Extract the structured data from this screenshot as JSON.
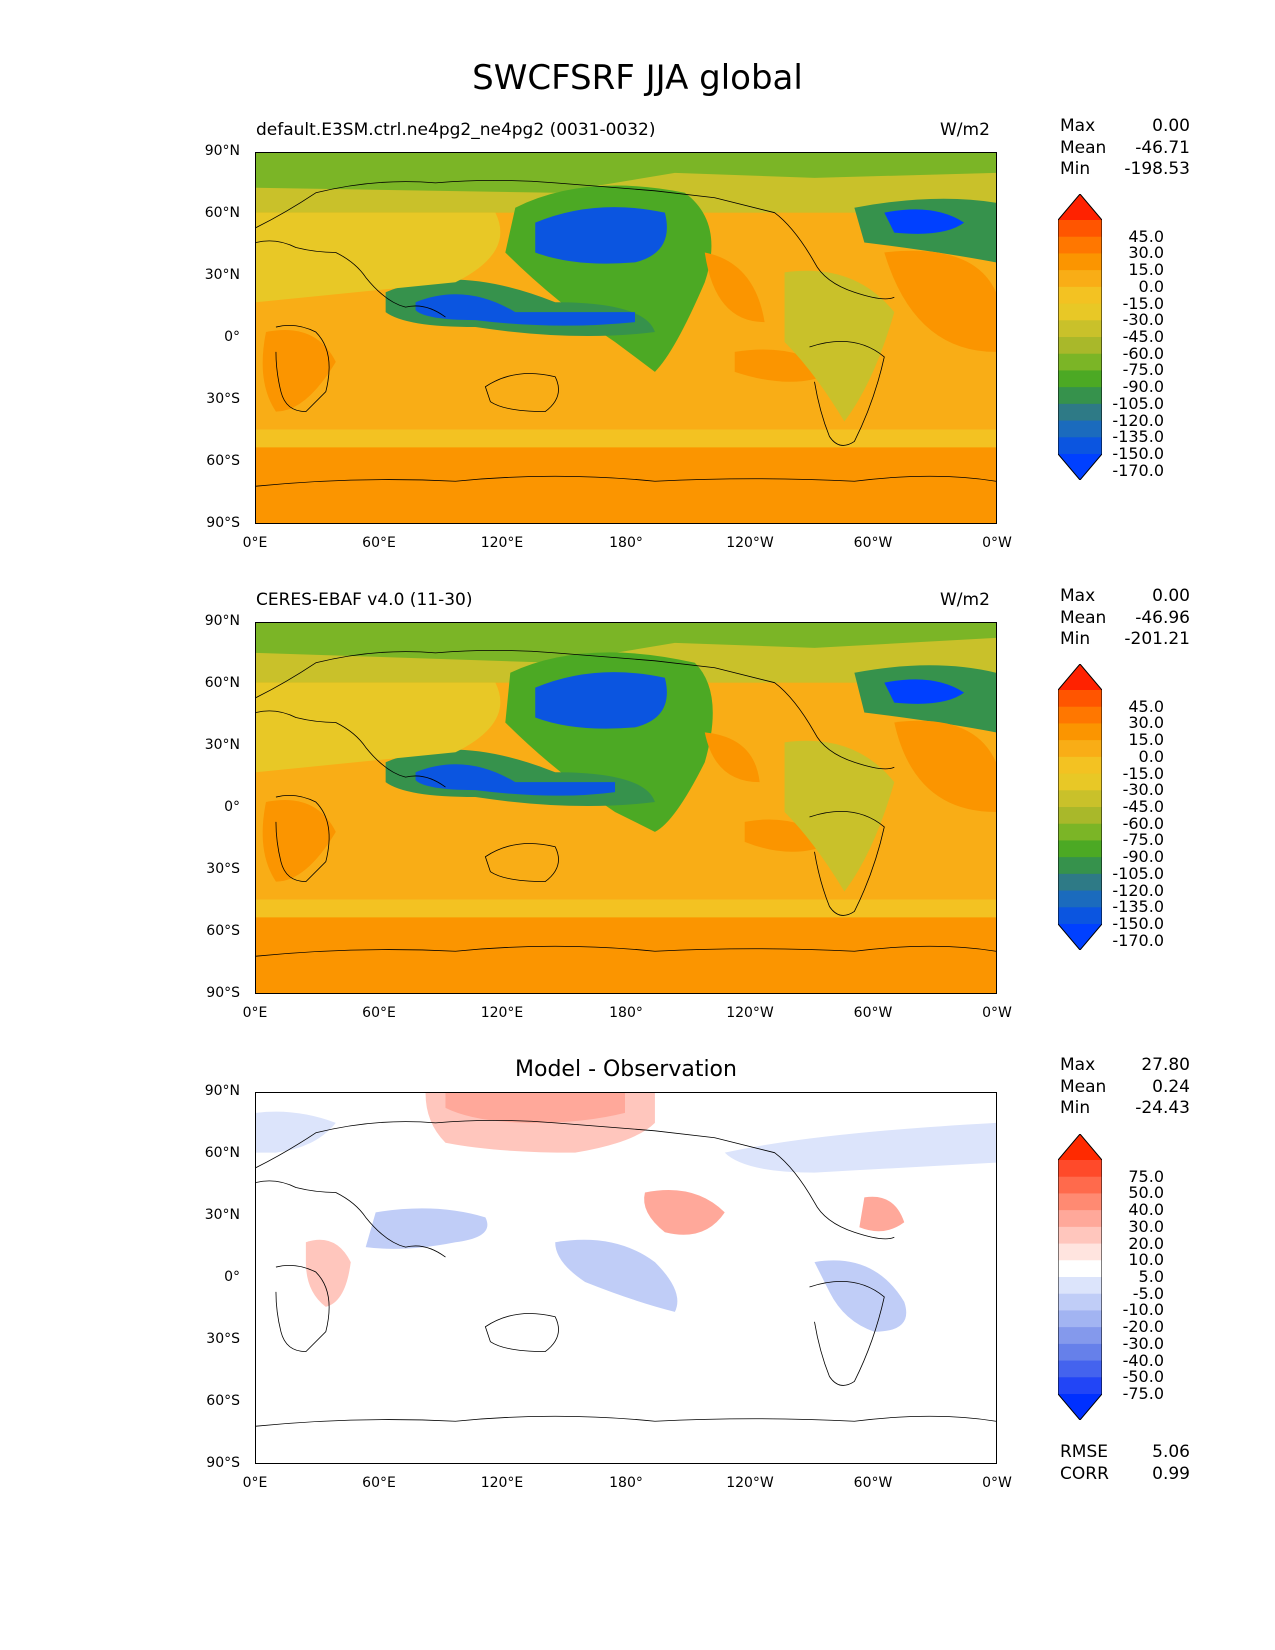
{
  "title": "SWCFSRF JJA global",
  "lat_labels": [
    "90°N",
    "60°N",
    "30°N",
    "0°",
    "30°S",
    "60°S",
    "90°S"
  ],
  "lon_labels": [
    "0°E",
    "60°E",
    "120°E",
    "180°",
    "120°W",
    "60°W",
    "0°W"
  ],
  "panels": [
    {
      "id": "model",
      "title_left": "default.E3SM.ctrl.ne4pg2_ne4pg2 (0031-0032)",
      "title_right": "W/m2",
      "title_center": "",
      "stats": {
        "max_label": "Max",
        "max": "0.00",
        "mean_label": "Mean",
        "mean": "-46.71",
        "min_label": "Min",
        "min": "-198.53"
      },
      "colorbar": {
        "labels": [
          "45.0",
          "30.0",
          "15.0",
          "0.0",
          "-15.0",
          "-30.0",
          "-45.0",
          "-60.0",
          "-75.0",
          "-90.0",
          "-105.0",
          "-120.0",
          "-135.0",
          "-150.0",
          "-170.0"
        ],
        "colors": [
          "#ff2200",
          "#ff5500",
          "#ff7700",
          "#fb9500",
          "#f9ad16",
          "#f3c222",
          "#e8c826",
          "#c9c12a",
          "#a9b82a",
          "#7bb526",
          "#4ca924",
          "#36924c",
          "#2e7a86",
          "#1b6bbd",
          "#0b55e0",
          "#0040ff"
        ]
      }
    },
    {
      "id": "obs",
      "title_left": "CERES-EBAF v4.0 (11-30)",
      "title_right": "W/m2",
      "title_center": "",
      "stats": {
        "max_label": "Max",
        "max": "0.00",
        "mean_label": "Mean",
        "mean": "-46.96",
        "min_label": "Min",
        "min": "-201.21"
      },
      "colorbar": {
        "labels": [
          "45.0",
          "30.0",
          "15.0",
          "0.0",
          "-15.0",
          "-30.0",
          "-45.0",
          "-60.0",
          "-75.0",
          "-90.0",
          "-105.0",
          "-120.0",
          "-135.0",
          "-150.0",
          "-170.0"
        ],
        "colors": [
          "#ff2200",
          "#ff5500",
          "#ff7700",
          "#fb9500",
          "#f9ad16",
          "#f3c222",
          "#e8c826",
          "#c9c12a",
          "#a9b82a",
          "#7bb526",
          "#4ca924",
          "#36924c",
          "#2e7a86",
          "#1b6bbd",
          "#0b55e0",
          "#0040ff"
        ]
      }
    },
    {
      "id": "diff",
      "title_left": "",
      "title_right": "",
      "title_center": "Model - Observation",
      "stats": {
        "max_label": "Max",
        "max": "27.80",
        "mean_label": "Mean",
        "mean": "0.24",
        "min_label": "Min",
        "min": "-24.43"
      },
      "colorbar": {
        "labels": [
          "75.0",
          "50.0",
          "40.0",
          "30.0",
          "20.0",
          "10.0",
          "5.0",
          "-5.0",
          "-10.0",
          "-20.0",
          "-30.0",
          "-40.0",
          "-50.0",
          "-75.0"
        ],
        "colors": [
          "#ff2a00",
          "#ff4a2a",
          "#ff6a4c",
          "#ff8a72",
          "#ffa89a",
          "#ffc6bd",
          "#ffe4df",
          "#ffffff",
          "#dce4fb",
          "#c0cdf7",
          "#a2b4f2",
          "#8499ec",
          "#6680ea",
          "#4463ee",
          "#2245f6",
          "#0030ff"
        ]
      }
    }
  ],
  "metrics": {
    "rmse_label": "RMSE",
    "rmse": "5.06",
    "corr_label": "CORR",
    "corr": "0.99"
  }
}
